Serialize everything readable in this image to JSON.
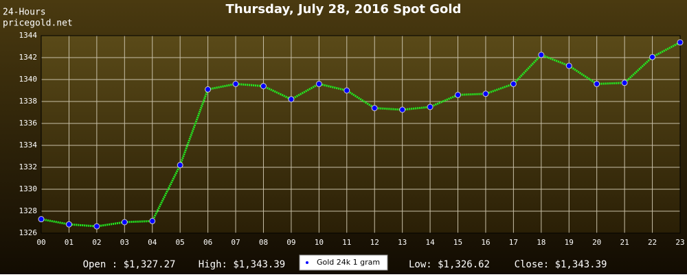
{
  "chart_data": {
    "type": "line",
    "title": "Thursday, July 28, 2016 Spot Gold",
    "corner_texts": [
      "24-Hours",
      "pricegold.net"
    ],
    "categories": [
      "00",
      "01",
      "02",
      "03",
      "04",
      "05",
      "06",
      "07",
      "08",
      "09",
      "10",
      "11",
      "12",
      "13",
      "14",
      "15",
      "16",
      "17",
      "18",
      "19",
      "20",
      "21",
      "22",
      "23"
    ],
    "series": [
      {
        "name": "Gold 24k 1 gram",
        "color": "#22ee22",
        "values": [
          1327.27,
          1326.8,
          1326.62,
          1327.0,
          1327.1,
          1332.2,
          1339.1,
          1339.6,
          1339.4,
          1338.2,
          1339.6,
          1339.0,
          1337.4,
          1337.25,
          1337.5,
          1338.6,
          1338.7,
          1339.6,
          1342.25,
          1341.25,
          1339.6,
          1339.7,
          1342.05,
          1343.39
        ]
      }
    ],
    "marker_color": "#0000ff",
    "ylim": [
      1326,
      1344
    ],
    "yticks": [
      1326,
      1328,
      1330,
      1332,
      1334,
      1336,
      1338,
      1340,
      1342,
      1344
    ],
    "grid": true,
    "stats": [
      "Open : $1,327.27",
      "High: $1,343.39",
      "Low: $1,326.62",
      "Close: $1,343.39"
    ]
  }
}
